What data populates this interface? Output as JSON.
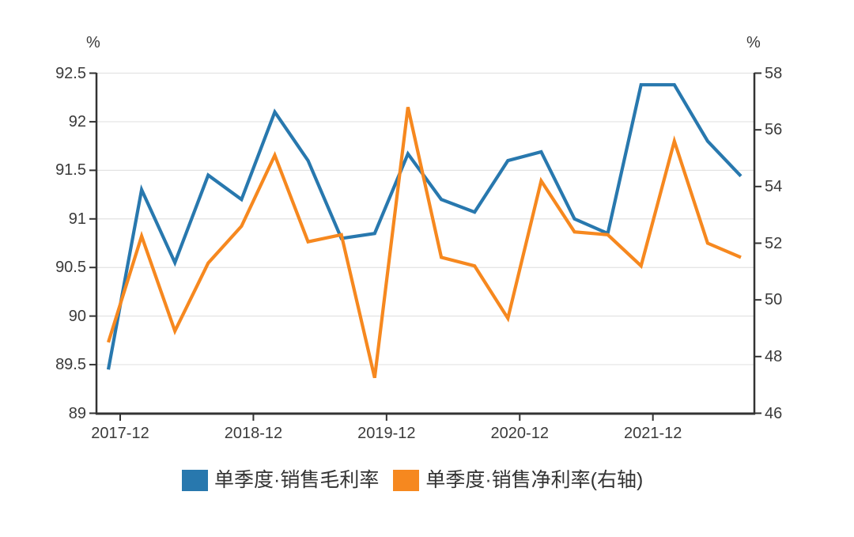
{
  "chart_data": {
    "type": "line",
    "title": "",
    "categories": [
      "2017-12",
      "2018-03",
      "2018-06",
      "2018-09",
      "2018-12",
      "2019-03",
      "2019-06",
      "2019-09",
      "2019-12",
      "2020-03",
      "2020-06",
      "2020-09",
      "2020-12",
      "2021-03",
      "2021-06",
      "2021-09",
      "2021-12",
      "2022-03",
      "2022-06",
      "2022-09"
    ],
    "x_axis": {
      "tick_labels": [
        "2017-12",
        "2018-12",
        "2019-12",
        "2020-12",
        "2021-12"
      ],
      "tick_indices": [
        0,
        4,
        8,
        12,
        16
      ]
    },
    "left_axis": {
      "unit": "%",
      "min": 89,
      "max": 92.5,
      "ticks": [
        92.5,
        92,
        91.5,
        91,
        90.5,
        90,
        89.5,
        89
      ]
    },
    "right_axis": {
      "unit": "%",
      "min": 46,
      "max": 58,
      "ticks": [
        58,
        56,
        54,
        52,
        50,
        48,
        46
      ]
    },
    "grid": true,
    "legend_position": "bottom",
    "series": [
      {
        "name": "单季度·销售毛利率",
        "axis": "left",
        "color": "#2878ae",
        "values": [
          89.45,
          91.3,
          90.55,
          91.45,
          91.2,
          92.1,
          91.6,
          90.8,
          90.85,
          91.67,
          91.2,
          91.07,
          91.6,
          91.69,
          91.0,
          90.85,
          92.38,
          92.38,
          91.8,
          91.44
        ]
      },
      {
        "name": "单季度·销售净利率(右轴)",
        "axis": "right",
        "color": "#f6881f",
        "values": [
          48.5,
          52.25,
          48.9,
          51.3,
          52.6,
          55.1,
          52.05,
          52.3,
          47.25,
          56.8,
          51.5,
          51.2,
          49.35,
          54.2,
          52.4,
          52.3,
          51.2,
          55.6,
          52.0,
          51.5
        ]
      }
    ],
    "colors": {
      "axis": "#333333",
      "grid": "#e3e3e3",
      "tick_text": "#3a3a3a"
    }
  }
}
